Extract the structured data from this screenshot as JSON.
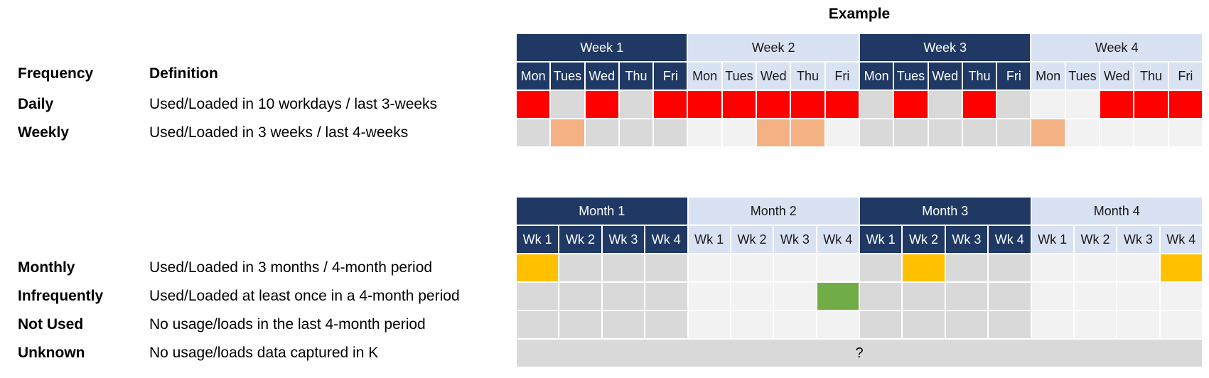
{
  "legend": {
    "frequency_header": "Frequency",
    "definition_header": "Definition",
    "top_rows": [
      {
        "label": "Daily",
        "definition": "Used/Loaded in 10 workdays / last 3-weeks"
      },
      {
        "label": "Weekly",
        "definition": "Used/Loaded in 3 weeks / last 4-weeks"
      }
    ],
    "bottom_rows": [
      {
        "label": "Monthly",
        "definition": "Used/Loaded in 3 months / 4-month period"
      },
      {
        "label": "Infrequently",
        "definition": "Used/Loaded at least once in a 4-month period"
      },
      {
        "label": "Not Used",
        "definition": "No usage/loads in the last 4-month period"
      },
      {
        "label": "Unknown",
        "definition": "No usage/loads data captured in K"
      }
    ]
  },
  "example": {
    "title": "Example",
    "week_table": {
      "group_headers": [
        {
          "label": "Week 1",
          "theme": "dark"
        },
        {
          "label": "Week 2",
          "theme": "light"
        },
        {
          "label": "Week 3",
          "theme": "dark"
        },
        {
          "label": "Week 4",
          "theme": "light"
        }
      ],
      "day_headers": [
        "Mon",
        "Tues",
        "Wed",
        "Thu",
        "Fri",
        "Mon",
        "Tues",
        "Wed",
        "Thu",
        "Fri",
        "Mon",
        "Tues",
        "Wed",
        "Thu",
        "Fri",
        "Mon",
        "Tues",
        "Wed",
        "Thu",
        "Fri"
      ],
      "rows": [
        {
          "name": "daily",
          "cells": [
            "red",
            "gray",
            "red",
            "gray",
            "red",
            "red",
            "red",
            "red",
            "red",
            "red",
            "gray",
            "red",
            "gray",
            "red",
            "gray",
            "light_gray",
            "light_gray",
            "red",
            "red",
            "red"
          ]
        },
        {
          "name": "weekly",
          "cells": [
            "gray",
            "orange",
            "gray",
            "gray",
            "gray",
            "light_gray",
            "light_gray",
            "orange",
            "orange",
            "light_gray",
            "gray",
            "gray",
            "gray",
            "gray",
            "gray",
            "orange",
            "light_gray",
            "light_gray",
            "light_gray",
            "light_gray"
          ]
        }
      ]
    },
    "month_table": {
      "group_headers": [
        {
          "label": "Month 1",
          "theme": "dark"
        },
        {
          "label": "Month 2",
          "theme": "light"
        },
        {
          "label": "Month 3",
          "theme": "dark"
        },
        {
          "label": "Month 4",
          "theme": "light"
        }
      ],
      "week_headers": [
        "Wk 1",
        "Wk 2",
        "Wk 3",
        "Wk 4",
        "Wk 1",
        "Wk 2",
        "Wk 3",
        "Wk 4",
        "Wk 1",
        "Wk 2",
        "Wk 3",
        "Wk 4",
        "Wk 1",
        "Wk 2",
        "Wk 3",
        "Wk 4"
      ],
      "rows": [
        {
          "name": "monthly",
          "cells": [
            "yellow",
            "gray",
            "gray",
            "gray",
            "light_gray",
            "light_gray",
            "light_gray",
            "light_gray",
            "gray",
            "yellow",
            "gray",
            "gray",
            "light_gray",
            "light_gray",
            "light_gray",
            "yellow"
          ]
        },
        {
          "name": "infrequently",
          "cells": [
            "gray",
            "gray",
            "gray",
            "gray",
            "light_gray",
            "light_gray",
            "light_gray",
            "green",
            "gray",
            "gray",
            "gray",
            "gray",
            "light_gray",
            "light_gray",
            "light_gray",
            "light_gray"
          ]
        },
        {
          "name": "not_used",
          "cells": [
            "gray",
            "gray",
            "gray",
            "gray",
            "light_gray",
            "light_gray",
            "light_gray",
            "light_gray",
            "gray",
            "gray",
            "gray",
            "gray",
            "light_gray",
            "light_gray",
            "light_gray",
            "light_gray"
          ]
        }
      ],
      "unknown_row": {
        "text": "?"
      }
    }
  },
  "colors": {
    "header_dark": "#1F3864",
    "header_light": "#D9E2F3",
    "red": "#FF0000",
    "orange": "#F4B183",
    "yellow": "#FFC000",
    "green": "#70AD47",
    "gray": "#D9D9D9",
    "light_gray": "#F2F2F2"
  }
}
